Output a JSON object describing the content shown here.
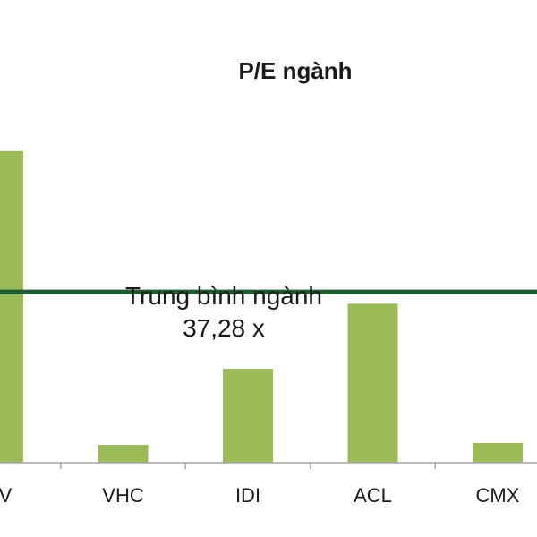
{
  "chart_data": {
    "type": "bar",
    "title": "P/E ngành",
    "categories": [
      "ANV",
      "VHC",
      "IDI",
      "ACL",
      "CMX"
    ],
    "category_labels_visible": [
      "NV",
      "VHC",
      "IDI",
      "ACL",
      "CMX"
    ],
    "values": [
      68.0,
      3.9,
      20.5,
      34.7,
      4.3
    ],
    "ylim": [
      0,
      75
    ],
    "grid": false,
    "legend": "none",
    "bar_color": "#9bbb59",
    "reference_line": {
      "value": 37.28,
      "label_line1": "Trung bình ngành",
      "label_line2": "37,28 x",
      "color": "#1e5c2f"
    }
  }
}
